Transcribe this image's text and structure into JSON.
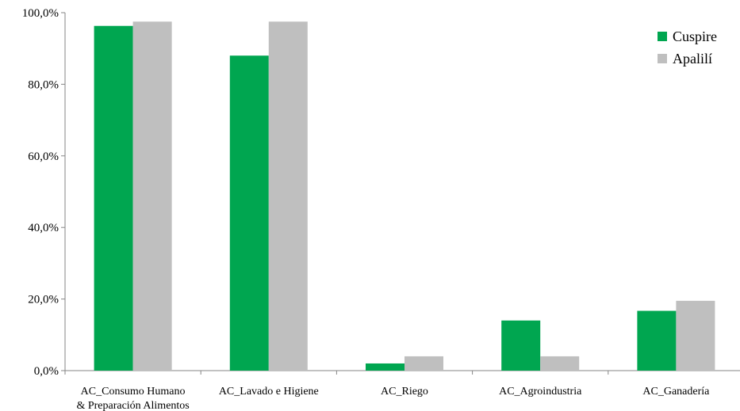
{
  "chart_data": {
    "type": "bar",
    "categories": [
      [
        "AC_Consumo Humano",
        "& Preparación Alimentos"
      ],
      [
        "AC_Lavado e Higiene"
      ],
      [
        "AC_Riego"
      ],
      [
        "AC_Agroindustria"
      ],
      [
        "AC_Ganadería"
      ]
    ],
    "series": [
      {
        "name": "Cuspire",
        "color": "#00A650",
        "values": [
          96.3,
          88.0,
          2.0,
          14.0,
          16.7
        ]
      },
      {
        "name": "Apalilí",
        "color": "#BFBFBF",
        "values": [
          97.5,
          97.5,
          4.0,
          4.0,
          19.5
        ]
      }
    ],
    "y_ticks": [
      "0,0%",
      "20,0%",
      "40,0%",
      "60,0%",
      "80,0%",
      "100,0%"
    ],
    "ylim": [
      0,
      100
    ],
    "grid": false,
    "legend_position": "top-right"
  }
}
